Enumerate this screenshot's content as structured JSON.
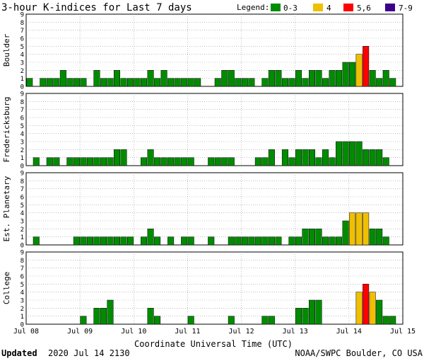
{
  "header": {
    "title": "3-hour K-indices for Last 7 days",
    "legend_label": "Legend:",
    "legend_items": [
      {
        "label": "0-3",
        "color": "#008c00"
      },
      {
        "label": "4",
        "color": "#f0c000"
      },
      {
        "label": "5,6",
        "color": "#ff0000"
      },
      {
        "label": "7-9",
        "color": "#3c008c"
      }
    ]
  },
  "footer": {
    "updated_label": "Updated",
    "updated_value": "2020 Jul 14 2130",
    "xlabel": "Coordinate Universal Time (UTC)",
    "credit": "NOAA/SWPC Boulder, CO USA"
  },
  "chart_data": [
    {
      "type": "bar",
      "station": "Boulder",
      "ylim": [
        0,
        9
      ],
      "yticks": [
        "0",
        "1",
        "2",
        "3",
        "4",
        "5",
        "6",
        "7",
        "8",
        "9"
      ],
      "xticks": [
        "Jul 08",
        "Jul 09",
        "Jul 10",
        "Jul 11",
        "Jul 12",
        "Jul 13",
        "Jul 14",
        "Jul 15"
      ],
      "values": [
        1,
        0,
        1,
        1,
        1,
        2,
        1,
        1,
        1,
        0,
        2,
        1,
        1,
        2,
        1,
        1,
        1,
        1,
        2,
        1,
        2,
        1,
        1,
        1,
        1,
        1,
        0,
        0,
        1,
        2,
        2,
        1,
        1,
        1,
        0,
        1,
        2,
        2,
        1,
        1,
        2,
        1,
        2,
        2,
        1,
        2,
        2,
        3,
        3,
        4,
        5,
        2,
        1,
        2,
        1,
        0
      ]
    },
    {
      "type": "bar",
      "station": "Fredericksburg",
      "ylim": [
        0,
        9
      ],
      "yticks": [
        "0",
        "1",
        "2",
        "3",
        "4",
        "5",
        "6",
        "7",
        "8",
        "9"
      ],
      "xticks": [
        "Jul 08",
        "Jul 09",
        "Jul 10",
        "Jul 11",
        "Jul 12",
        "Jul 13",
        "Jul 14",
        "Jul 15"
      ],
      "values": [
        0,
        1,
        0,
        1,
        1,
        0,
        1,
        1,
        1,
        1,
        1,
        1,
        1,
        2,
        2,
        0,
        0,
        1,
        2,
        1,
        1,
        1,
        1,
        1,
        1,
        0,
        0,
        1,
        1,
        1,
        1,
        0,
        0,
        0,
        1,
        1,
        2,
        0,
        2,
        1,
        2,
        2,
        2,
        1,
        2,
        1,
        3,
        3,
        3,
        3,
        2,
        2,
        2,
        1,
        0,
        0
      ]
    },
    {
      "type": "bar",
      "station": "Est. Planetary",
      "ylim": [
        0,
        9
      ],
      "yticks": [
        "0",
        "1",
        "2",
        "3",
        "4",
        "5",
        "6",
        "7",
        "8",
        "9"
      ],
      "xticks": [
        "Jul 08",
        "Jul 09",
        "Jul 10",
        "Jul 11",
        "Jul 12",
        "Jul 13",
        "Jul 14",
        "Jul 15"
      ],
      "values": [
        0,
        1,
        0,
        0,
        0,
        0,
        0,
        1,
        1,
        1,
        1,
        1,
        1,
        1,
        1,
        1,
        0,
        1,
        2,
        1,
        0,
        1,
        0,
        1,
        1,
        0,
        0,
        1,
        0,
        0,
        1,
        1,
        1,
        1,
        1,
        1,
        1,
        1,
        0,
        1,
        1,
        2,
        2,
        2,
        1,
        1,
        1,
        3,
        4,
        4,
        4,
        2,
        2,
        1,
        0,
        0
      ]
    },
    {
      "type": "bar",
      "station": "College",
      "ylim": [
        0,
        9
      ],
      "yticks": [
        "0",
        "1",
        "2",
        "3",
        "4",
        "5",
        "6",
        "7",
        "8",
        "9"
      ],
      "xticks": [
        "Jul 08",
        "Jul 09",
        "Jul 10",
        "Jul 11",
        "Jul 12",
        "Jul 13",
        "Jul 14",
        "Jul 15"
      ],
      "values": [
        0,
        0,
        0,
        0,
        0,
        0,
        0,
        0,
        1,
        0,
        2,
        2,
        3,
        0,
        0,
        0,
        0,
        0,
        2,
        1,
        0,
        0,
        0,
        0,
        1,
        0,
        0,
        0,
        0,
        0,
        1,
        0,
        0,
        0,
        0,
        1,
        1,
        0,
        0,
        0,
        2,
        2,
        3,
        3,
        0,
        0,
        0,
        0,
        0,
        4,
        5,
        4,
        3,
        1,
        1,
        0
      ]
    }
  ]
}
